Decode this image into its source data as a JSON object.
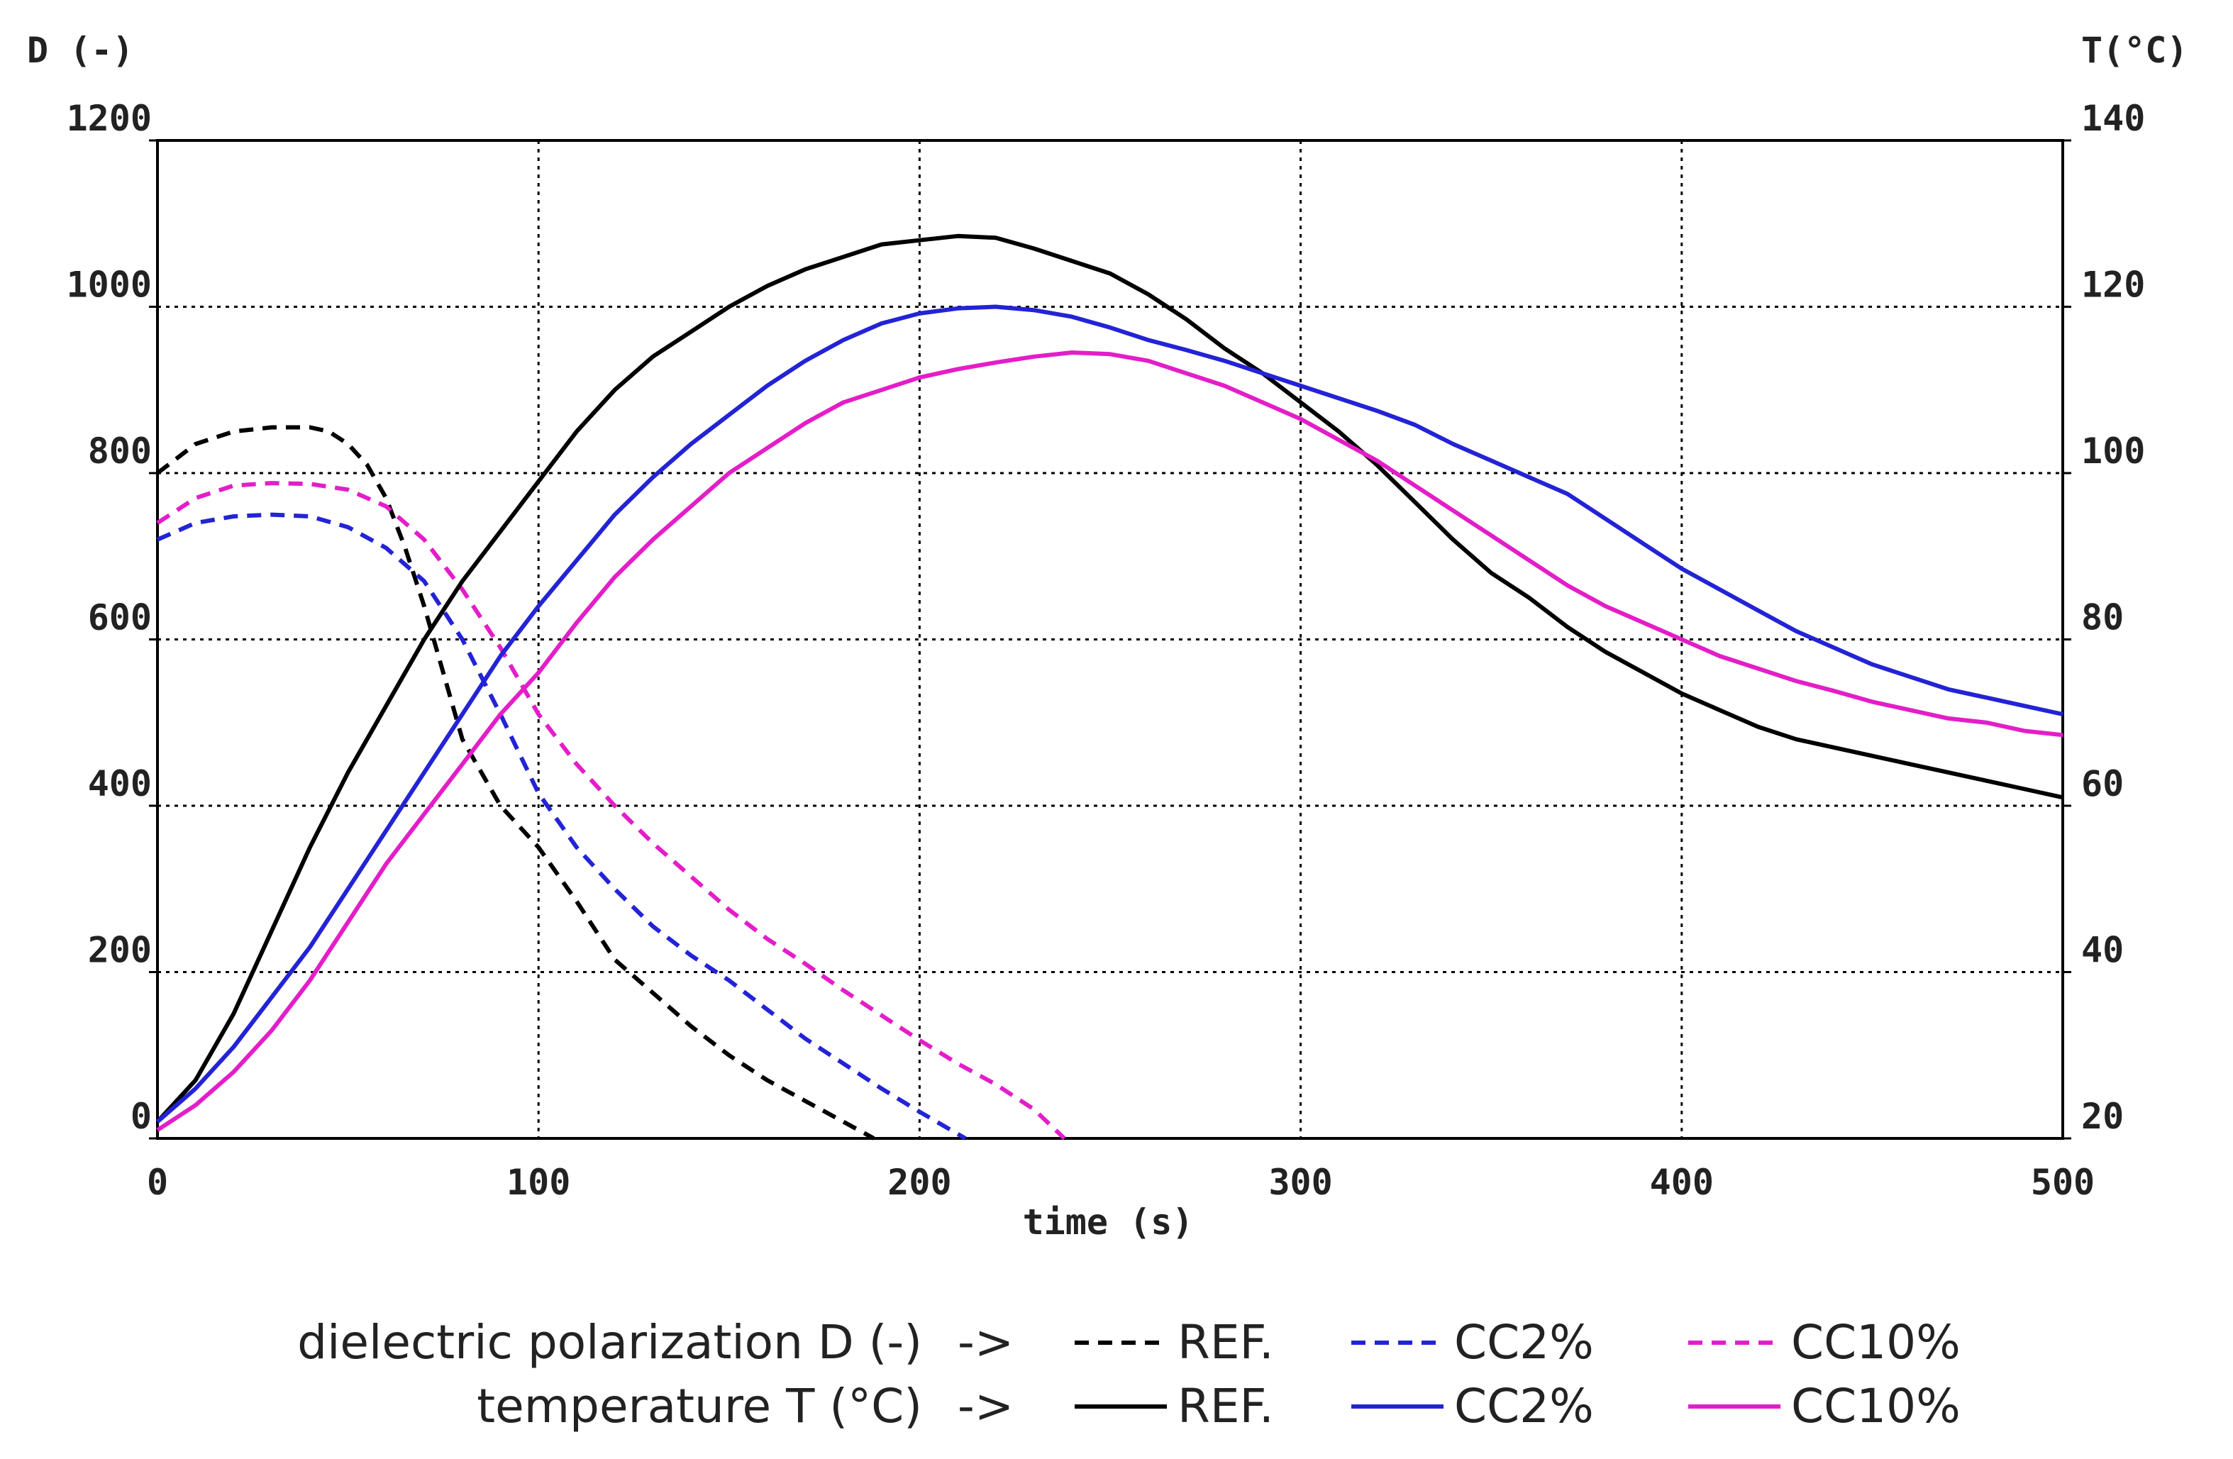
{
  "chart_data": {
    "type": "line",
    "title": "",
    "xlabel": "time (s)",
    "ylabel_left": "D (-)",
    "ylabel_right": "T(°C)",
    "xlim": [
      0,
      500
    ],
    "ylim_left": [
      0,
      1200
    ],
    "ylim_right": [
      20,
      140
    ],
    "x_ticks": [
      "0",
      "100",
      "200",
      "300",
      "400",
      "500"
    ],
    "y_left_ticks": [
      "0",
      "200",
      "400",
      "600",
      "800",
      "1000",
      "1200"
    ],
    "y_right_ticks": [
      "20",
      "40",
      "60",
      "80",
      "100",
      "120",
      "140"
    ],
    "grid": true,
    "series": [
      {
        "name": "REF.",
        "group": "D",
        "axis": "left",
        "style": "dashed",
        "color": "#000000",
        "x": [
          0,
          10,
          20,
          30,
          40,
          45,
          50,
          55,
          60,
          65,
          70,
          75,
          80,
          90,
          100,
          110,
          120,
          130,
          140,
          150,
          160,
          170,
          180,
          188
        ],
        "y": [
          800,
          835,
          850,
          855,
          855,
          850,
          835,
          810,
          770,
          710,
          640,
          560,
          480,
          400,
          350,
          285,
          215,
          175,
          135,
          100,
          70,
          45,
          20,
          0
        ]
      },
      {
        "name": "CC2%",
        "group": "D",
        "axis": "left",
        "style": "dashed",
        "color": "#2323d6",
        "x": [
          0,
          10,
          20,
          30,
          40,
          50,
          60,
          70,
          80,
          90,
          100,
          110,
          120,
          130,
          140,
          150,
          160,
          170,
          180,
          190,
          200,
          212
        ],
        "y": [
          720,
          740,
          748,
          750,
          748,
          735,
          710,
          670,
          600,
          510,
          415,
          350,
          300,
          255,
          220,
          190,
          155,
          120,
          90,
          60,
          32,
          0
        ]
      },
      {
        "name": "CC10%",
        "group": "D",
        "axis": "left",
        "style": "dashed",
        "color": "#e31ec8",
        "x": [
          0,
          10,
          20,
          30,
          40,
          50,
          60,
          70,
          80,
          90,
          100,
          110,
          120,
          130,
          140,
          150,
          160,
          170,
          180,
          190,
          200,
          210,
          220,
          230,
          238
        ],
        "y": [
          740,
          770,
          785,
          788,
          787,
          780,
          760,
          720,
          660,
          590,
          510,
          450,
          400,
          355,
          315,
          275,
          240,
          210,
          178,
          148,
          118,
          90,
          65,
          35,
          0
        ]
      },
      {
        "name": "REF.",
        "group": "T",
        "axis": "right",
        "style": "solid",
        "color": "#000000",
        "x": [
          0,
          10,
          20,
          30,
          40,
          50,
          60,
          70,
          80,
          90,
          100,
          110,
          120,
          130,
          140,
          150,
          160,
          170,
          180,
          190,
          200,
          210,
          220,
          230,
          240,
          250,
          260,
          270,
          280,
          290,
          300,
          310,
          320,
          330,
          340,
          350,
          360,
          370,
          380,
          390,
          400,
          410,
          420,
          430,
          440,
          450,
          460,
          470,
          480,
          490,
          500
        ],
        "y": [
          22,
          27,
          35,
          45,
          55,
          64,
          72,
          80,
          87,
          93,
          99,
          105,
          110,
          114,
          117,
          120,
          122.5,
          124.5,
          126,
          127.5,
          128,
          128.5,
          128.3,
          127,
          125.5,
          124,
          121.5,
          118.5,
          115,
          112,
          108.5,
          105,
          101,
          96.5,
          92,
          88,
          85,
          81.5,
          78.5,
          76,
          73.5,
          71.5,
          69.5,
          68,
          67,
          66,
          65,
          64,
          63,
          62,
          61
        ]
      },
      {
        "name": "CC2%",
        "group": "T",
        "axis": "right",
        "style": "solid",
        "color": "#2323d6",
        "x": [
          0,
          10,
          20,
          30,
          40,
          50,
          60,
          70,
          80,
          90,
          100,
          110,
          120,
          130,
          140,
          150,
          160,
          170,
          180,
          190,
          200,
          210,
          220,
          230,
          240,
          250,
          260,
          270,
          280,
          290,
          300,
          310,
          320,
          330,
          340,
          350,
          360,
          370,
          380,
          390,
          400,
          410,
          420,
          430,
          440,
          450,
          460,
          470,
          480,
          490,
          500
        ],
        "y": [
          22,
          26,
          31,
          37,
          43,
          50,
          57,
          64,
          71,
          78,
          84,
          89.5,
          95,
          99.5,
          103.5,
          107,
          110.5,
          113.5,
          116,
          118,
          119.2,
          119.8,
          120,
          119.6,
          118.8,
          117.5,
          116,
          114.8,
          113.5,
          112,
          110.5,
          109,
          107.5,
          105.8,
          103.5,
          101.5,
          99.5,
          97.5,
          94.5,
          91.5,
          88.5,
          86,
          83.5,
          81,
          79,
          77,
          75.5,
          74,
          73,
          72,
          71
        ]
      },
      {
        "name": "CC10%",
        "group": "T",
        "axis": "right",
        "style": "solid",
        "color": "#e31ec8",
        "x": [
          0,
          10,
          20,
          30,
          40,
          50,
          60,
          70,
          80,
          90,
          100,
          110,
          120,
          130,
          140,
          150,
          160,
          170,
          180,
          190,
          200,
          210,
          220,
          230,
          240,
          250,
          260,
          270,
          280,
          290,
          300,
          310,
          320,
          330,
          340,
          350,
          360,
          370,
          380,
          390,
          400,
          410,
          420,
          430,
          440,
          450,
          460,
          470,
          480,
          490,
          500
        ],
        "y": [
          21,
          24,
          28,
          33,
          39,
          46,
          53,
          59,
          65,
          71,
          76,
          82,
          87.5,
          92,
          96,
          100,
          103,
          106,
          108.5,
          110,
          111.5,
          112.5,
          113.3,
          114,
          114.5,
          114.3,
          113.5,
          112,
          110.5,
          108.5,
          106.5,
          104,
          101.5,
          98.5,
          95.5,
          92.5,
          89.5,
          86.5,
          84,
          82,
          80,
          78,
          76.5,
          75,
          73.8,
          72.5,
          71.5,
          70.5,
          70,
          69,
          68.5
        ]
      }
    ],
    "legend": {
      "placement": "bottom-center",
      "rows": [
        {
          "label": "dielectric polarization D (-)",
          "arrow": "->",
          "style": "dashed",
          "items": [
            {
              "name": "REF.",
              "color": "#000000"
            },
            {
              "name": "CC2%",
              "color": "#2323d6"
            },
            {
              "name": "CC10%",
              "color": "#e31ec8"
            }
          ]
        },
        {
          "label": "temperature T (°C)",
          "arrow": "->",
          "style": "solid",
          "items": [
            {
              "name": "REF.",
              "color": "#000000"
            },
            {
              "name": "CC2%",
              "color": "#2323d6"
            },
            {
              "name": "CC10%",
              "color": "#e31ec8"
            }
          ]
        }
      ]
    }
  }
}
